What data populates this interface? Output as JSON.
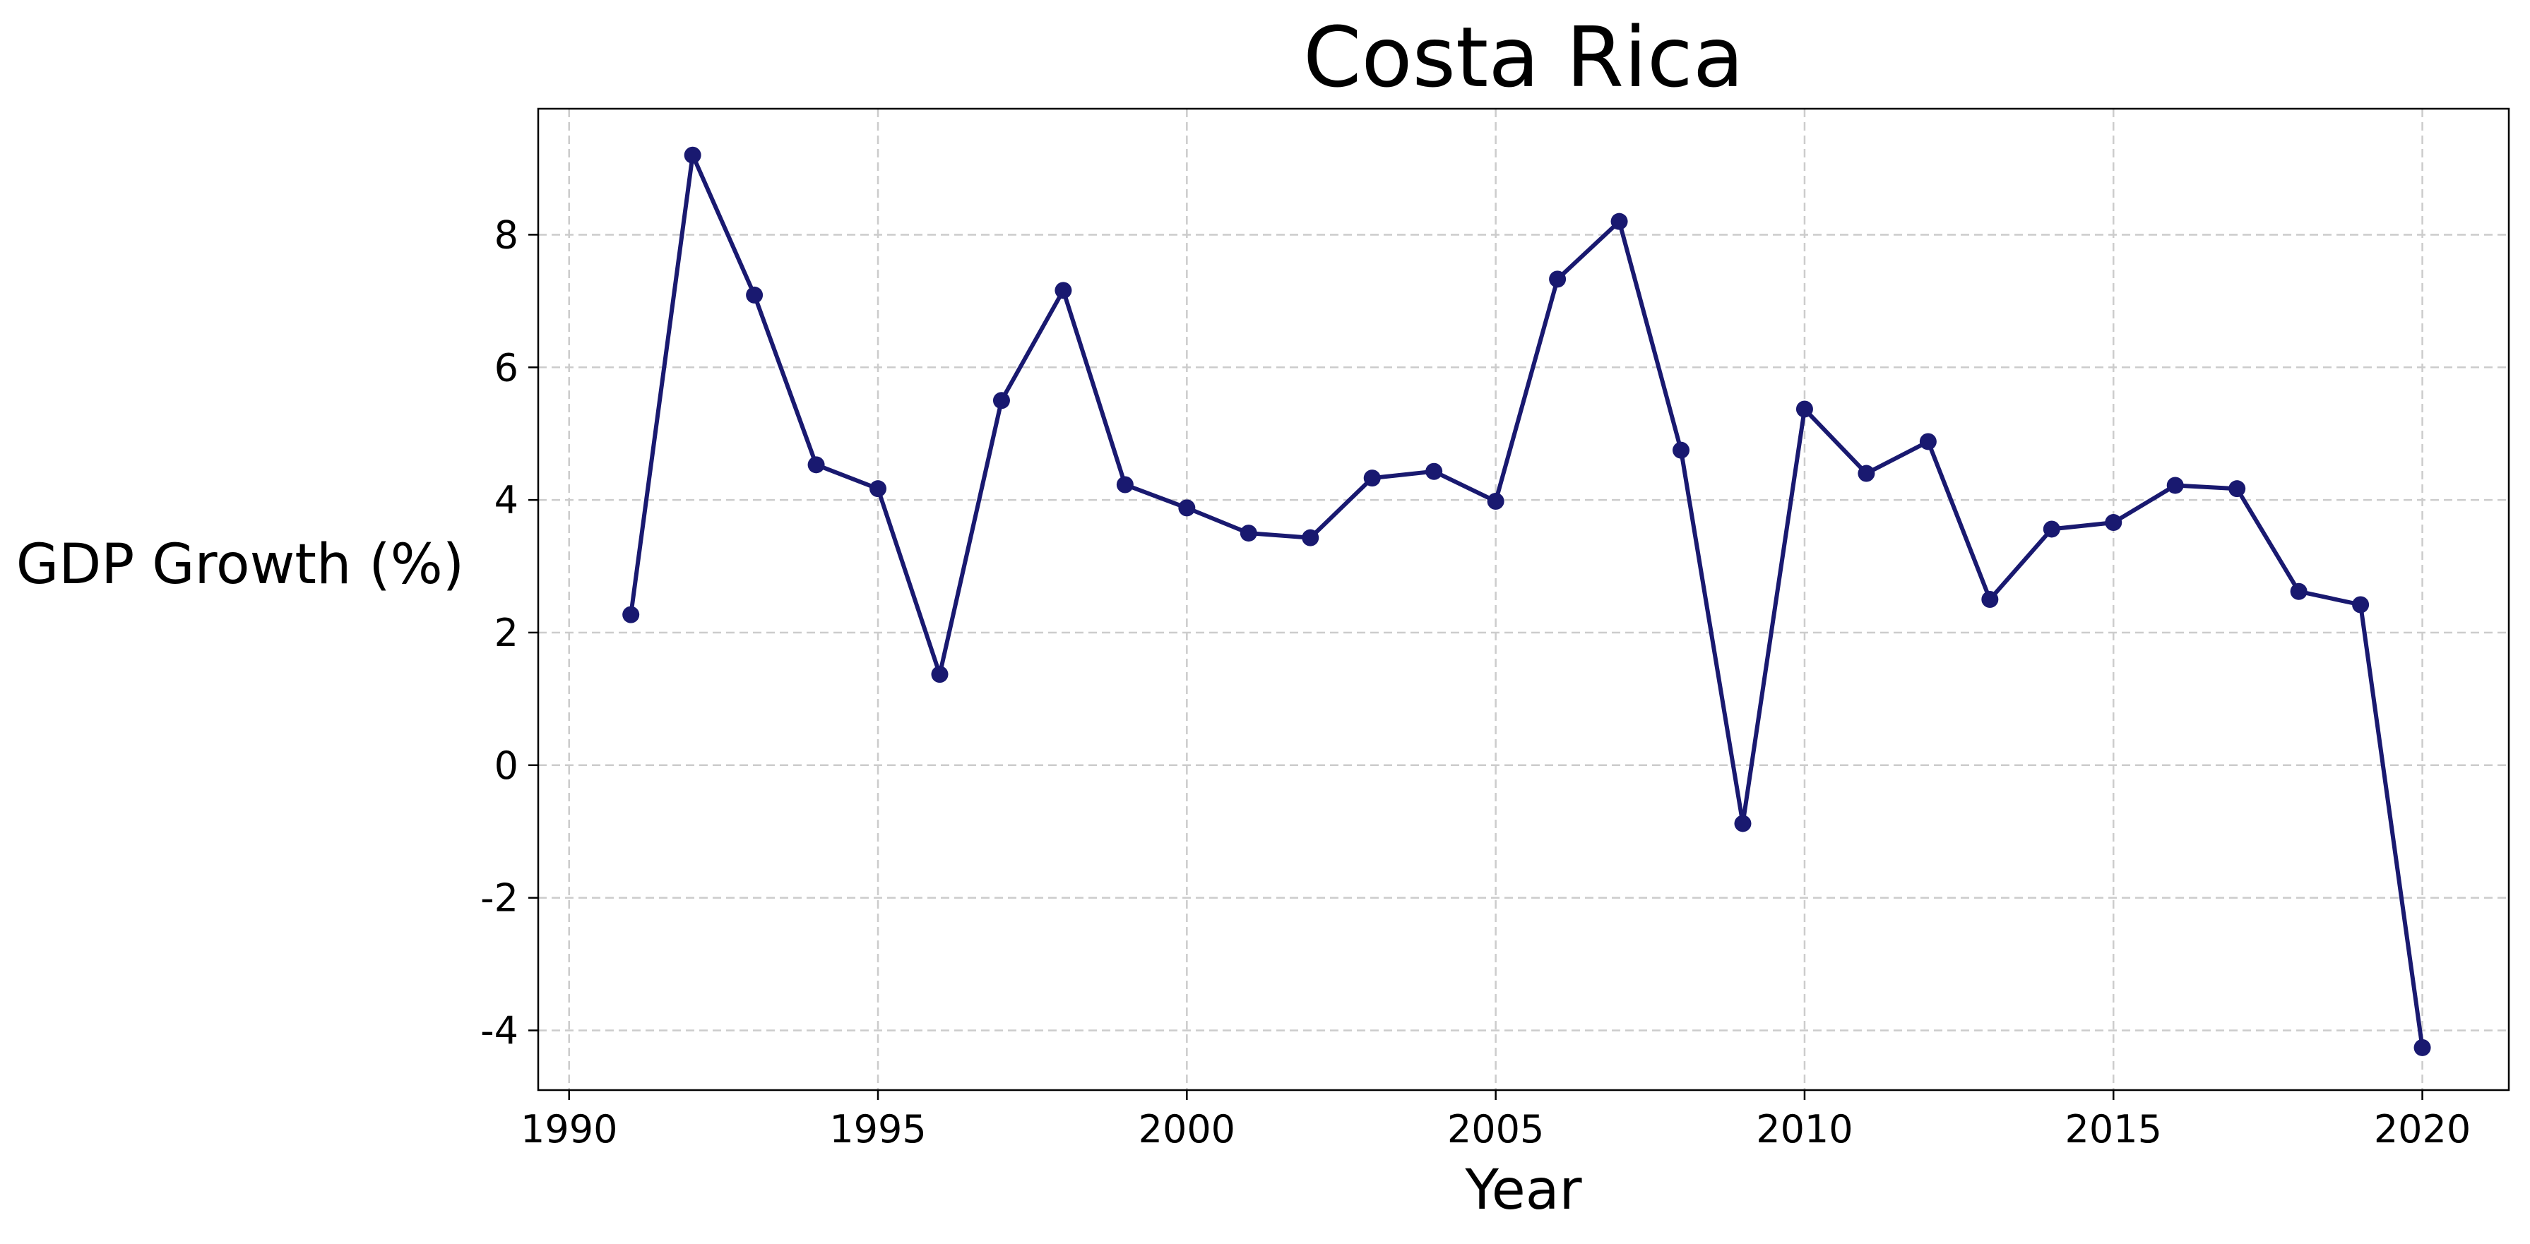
{
  "chart_data": {
    "type": "line",
    "title": "Costa Rica",
    "xlabel": "Year",
    "ylabel": "GDP Growth (%)",
    "xlim": [
      1989.5,
      2021.4
    ],
    "ylim": [
      -4.9,
      9.9
    ],
    "xticks": [
      1990,
      1995,
      2000,
      2005,
      2010,
      2015,
      2020
    ],
    "yticks": [
      -4,
      -2,
      0,
      2,
      4,
      6,
      8
    ],
    "grid": true,
    "line_color": "#191970",
    "series": [
      {
        "x": [
          1991,
          1992,
          1993,
          1994,
          1995,
          1996,
          1997,
          1998,
          1999,
          2000,
          2001,
          2002,
          2003,
          2004,
          2005,
          2006,
          2007,
          2008,
          2009,
          2010,
          2011,
          2012,
          2013,
          2014,
          2015,
          2016,
          2017,
          2018,
          2019,
          2020
        ],
        "y": [
          2.27,
          9.2,
          7.09,
          4.53,
          4.17,
          1.37,
          5.5,
          7.16,
          4.23,
          3.88,
          3.5,
          3.43,
          4.33,
          4.43,
          3.98,
          7.33,
          8.2,
          4.75,
          -0.88,
          5.37,
          4.4,
          4.88,
          2.5,
          3.56,
          3.66,
          4.22,
          4.17,
          2.62,
          2.42,
          -4.26
        ]
      }
    ]
  }
}
